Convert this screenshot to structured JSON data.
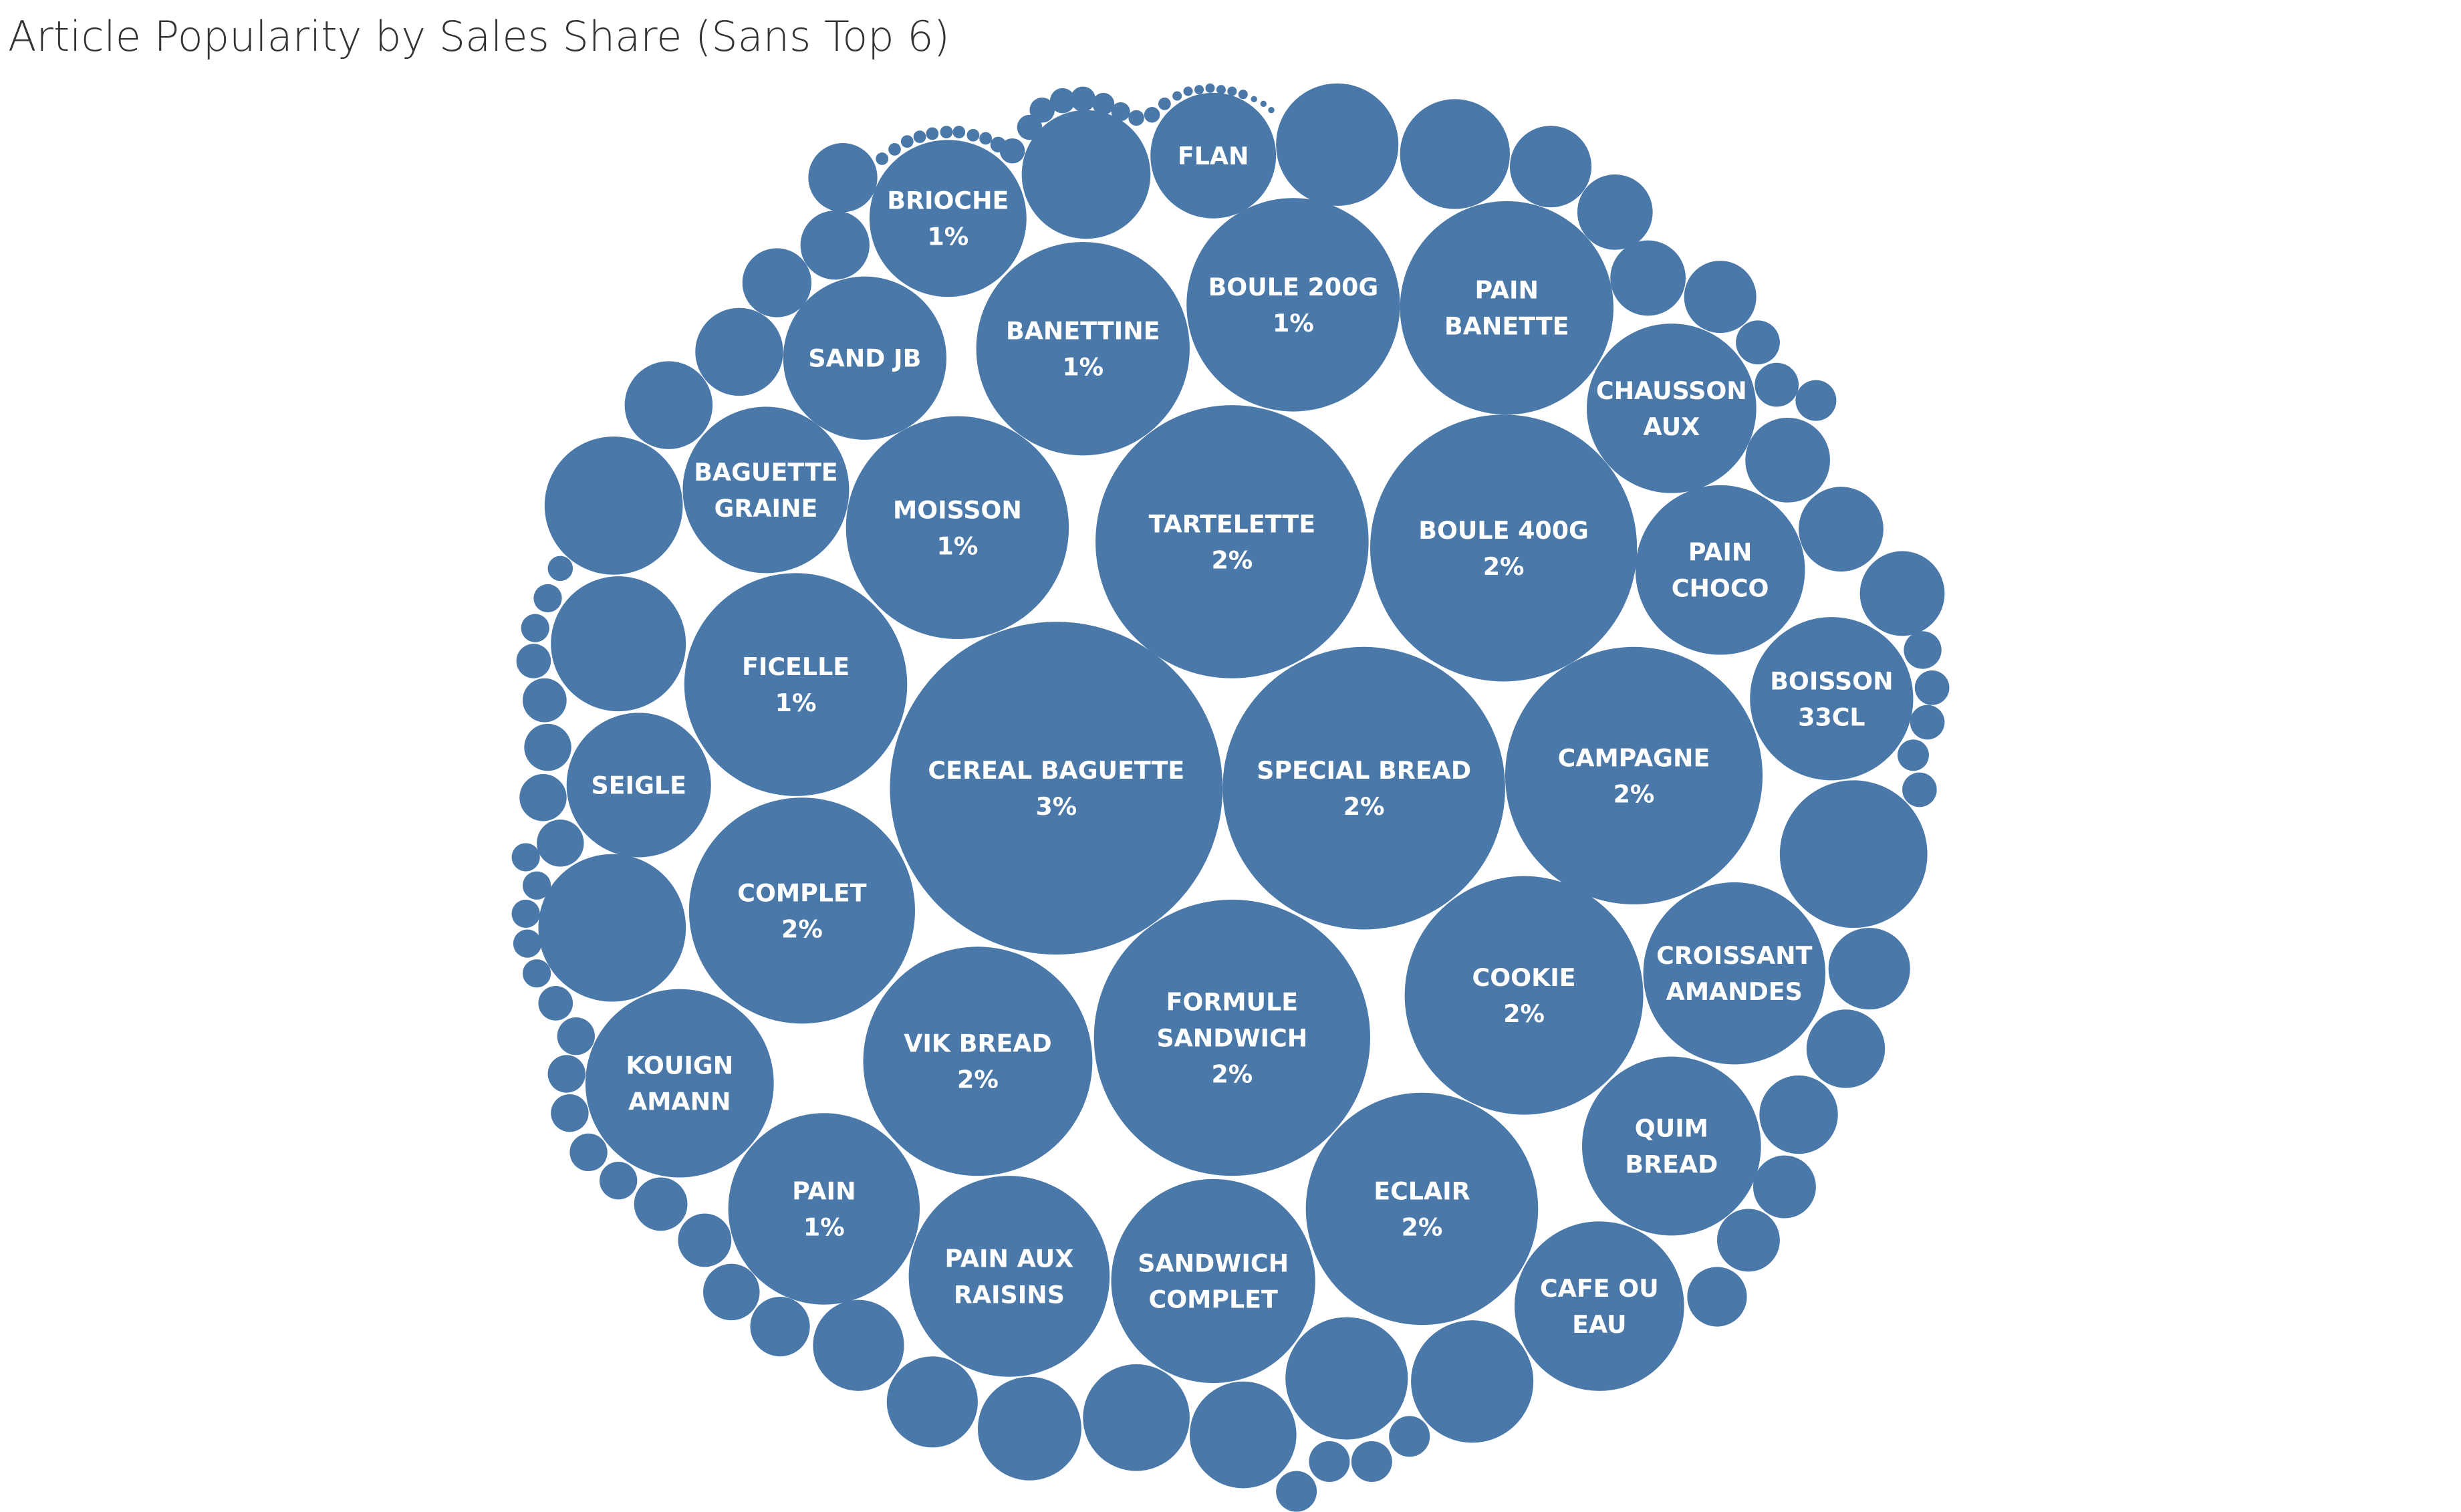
{
  "title": "Article Popularity by Sales Share (Sans Top 6)",
  "colors": {
    "bubble": "#4a78a8",
    "label": "#ffffff",
    "title": "#333333",
    "background": "#ffffff"
  },
  "chart_data": {
    "type": "packed-bubble",
    "title": "Article Popularity by Sales Share (Sans Top 6)",
    "labeled": [
      {
        "name": "CEREAL BAGUETTE",
        "lines": [
          "CEREAL BAGUETTE"
        ],
        "share_label": "3%"
      },
      {
        "name": "SPECIAL BREAD",
        "lines": [
          "SPECIAL BREAD"
        ],
        "share_label": "2%"
      },
      {
        "name": "FORMULE SANDWICH",
        "lines": [
          "FORMULE",
          "SANDWICH"
        ],
        "share_label": "2%"
      },
      {
        "name": "BOULE 400G",
        "lines": [
          "BOULE 400G"
        ],
        "share_label": "2%"
      },
      {
        "name": "TARTELETTE",
        "lines": [
          "TARTELETTE"
        ],
        "share_label": "2%"
      },
      {
        "name": "CAMPAGNE",
        "lines": [
          "CAMPAGNE"
        ],
        "share_label": "2%"
      },
      {
        "name": "ECLAIR",
        "lines": [
          "ECLAIR"
        ],
        "share_label": "2%"
      },
      {
        "name": "COOKIE",
        "lines": [
          "COOKIE"
        ],
        "share_label": "2%"
      },
      {
        "name": "VIK BREAD",
        "lines": [
          "VIK BREAD"
        ],
        "share_label": "2%"
      },
      {
        "name": "COMPLET",
        "lines": [
          "COMPLET"
        ],
        "share_label": "2%"
      },
      {
        "name": "BOULE 200G",
        "lines": [
          "BOULE 200G"
        ],
        "share_label": "1%"
      },
      {
        "name": "MOISSON",
        "lines": [
          "MOISSON"
        ],
        "share_label": "1%"
      },
      {
        "name": "BANETTINE",
        "lines": [
          "BANETTINE"
        ],
        "share_label": "1%"
      },
      {
        "name": "FICELLE",
        "lines": [
          "FICELLE"
        ],
        "share_label": "1%"
      },
      {
        "name": "PAIN",
        "lines": [
          "PAIN"
        ],
        "share_label": "1%"
      },
      {
        "name": "BRIOCHE",
        "lines": [
          "BRIOCHE"
        ],
        "share_label": "1%"
      },
      {
        "name": "PAIN BANETTE",
        "lines": [
          "PAIN",
          "BANETTE"
        ],
        "share_label": ""
      },
      {
        "name": "SANDWICH COMPLET",
        "lines": [
          "SANDWICH",
          "COMPLET"
        ],
        "share_label": ""
      },
      {
        "name": "PAIN AUX RAISINS",
        "lines": [
          "PAIN AUX",
          "RAISINS"
        ],
        "share_label": ""
      },
      {
        "name": "CROISSANT AMANDES",
        "lines": [
          "CROISSANT",
          "AMANDES"
        ],
        "share_label": ""
      },
      {
        "name": "KOUIGN AMANN",
        "lines": [
          "KOUIGN",
          "AMANN"
        ],
        "share_label": ""
      },
      {
        "name": "QUIM BREAD",
        "lines": [
          "QUIM",
          "BREAD"
        ],
        "share_label": ""
      },
      {
        "name": "CAFE OU EAU",
        "lines": [
          "CAFE OU",
          "EAU"
        ],
        "share_label": ""
      },
      {
        "name": "CHAUSSON AUX",
        "lines": [
          "CHAUSSON",
          "AUX"
        ],
        "share_label": ""
      },
      {
        "name": "PAIN CHOCO",
        "lines": [
          "PAIN",
          "CHOCO"
        ],
        "share_label": ""
      },
      {
        "name": "BAGUETTE GRAINE",
        "lines": [
          "BAGUETTE",
          "GRAINE"
        ],
        "share_label": ""
      },
      {
        "name": "BOISSON 33CL",
        "lines": [
          "BOISSON",
          "33CL"
        ],
        "share_label": ""
      },
      {
        "name": "SAND JB",
        "lines": [
          "SAND JB"
        ],
        "share_label": ""
      },
      {
        "name": "SEIGLE",
        "lines": [
          "SEIGLE"
        ],
        "share_label": ""
      },
      {
        "name": "FLAN",
        "lines": [
          "FLAN"
        ],
        "share_label": ""
      }
    ],
    "unlabeled_count": 120
  }
}
